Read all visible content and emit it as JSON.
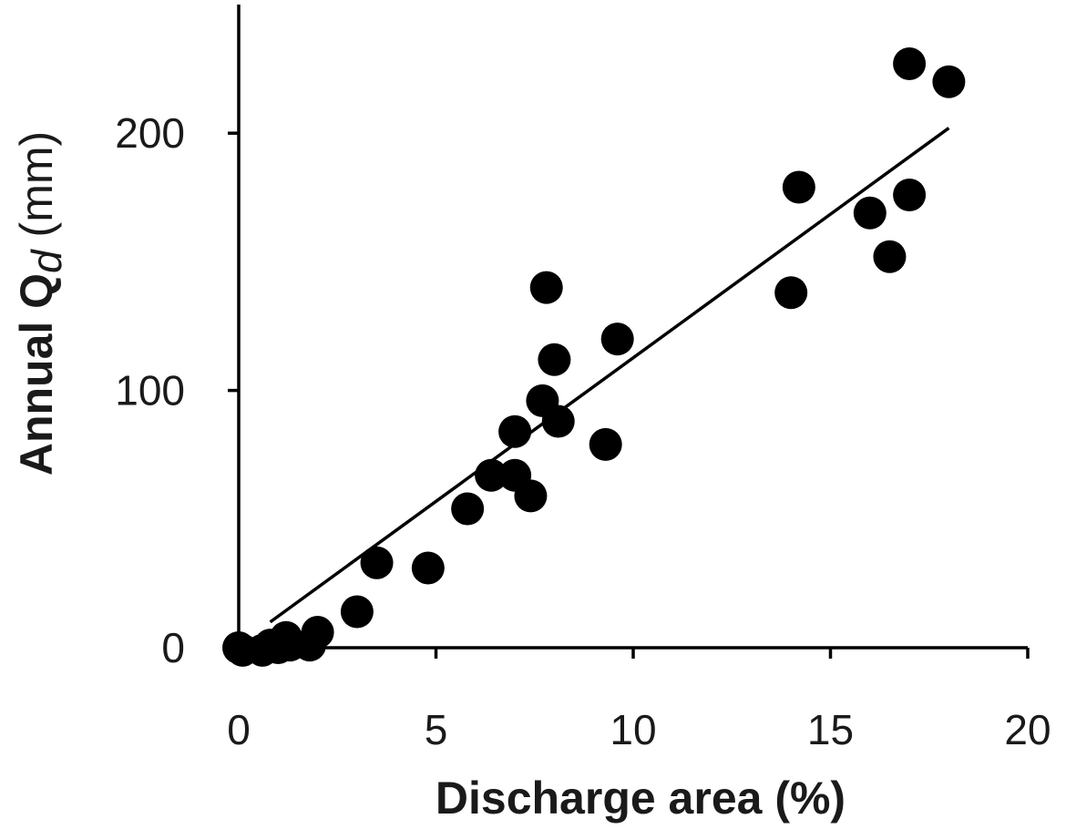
{
  "chart_data": {
    "type": "scatter",
    "xlabel": "Discharge area (%)",
    "ylabel": {
      "prefix": "Annual Q",
      "subscript": "d",
      "suffix": " (mm)"
    },
    "xlim": [
      0,
      20
    ],
    "ylim": [
      0,
      250
    ],
    "xticks": [
      0,
      5,
      10,
      15,
      20
    ],
    "yticks": [
      0,
      100,
      200
    ],
    "xtick_labels": [
      "0",
      "5",
      "10",
      "15",
      "20"
    ],
    "ytick_labels": [
      "0",
      "100",
      "200"
    ],
    "grid": false,
    "legend": "none",
    "series": [
      {
        "points": [
          {
            "x": 0.0,
            "y": 0
          },
          {
            "x": 0.1,
            "y": -1
          },
          {
            "x": 0.6,
            "y": -1
          },
          {
            "x": 0.8,
            "y": 1
          },
          {
            "x": 1.0,
            "y": 0
          },
          {
            "x": 1.2,
            "y": 4
          },
          {
            "x": 1.3,
            "y": 1
          },
          {
            "x": 1.8,
            "y": 1
          },
          {
            "x": 2.0,
            "y": 6
          },
          {
            "x": 3.0,
            "y": 14
          },
          {
            "x": 3.5,
            "y": 33
          },
          {
            "x": 4.8,
            "y": 31
          },
          {
            "x": 5.8,
            "y": 54
          },
          {
            "x": 6.4,
            "y": 67
          },
          {
            "x": 7.0,
            "y": 67
          },
          {
            "x": 7.0,
            "y": 84
          },
          {
            "x": 7.4,
            "y": 59
          },
          {
            "x": 7.7,
            "y": 96
          },
          {
            "x": 7.8,
            "y": 140
          },
          {
            "x": 8.0,
            "y": 112
          },
          {
            "x": 8.1,
            "y": 88
          },
          {
            "x": 9.3,
            "y": 79
          },
          {
            "x": 9.6,
            "y": 120
          },
          {
            "x": 14.0,
            "y": 138
          },
          {
            "x": 14.2,
            "y": 179
          },
          {
            "x": 16.0,
            "y": 169
          },
          {
            "x": 16.5,
            "y": 152
          },
          {
            "x": 17.0,
            "y": 176
          },
          {
            "x": 17.0,
            "y": 227
          },
          {
            "x": 18.0,
            "y": 220
          }
        ]
      }
    ],
    "trendline": {
      "x": [
        0.8,
        18.0
      ],
      "y": [
        10,
        202
      ]
    }
  }
}
